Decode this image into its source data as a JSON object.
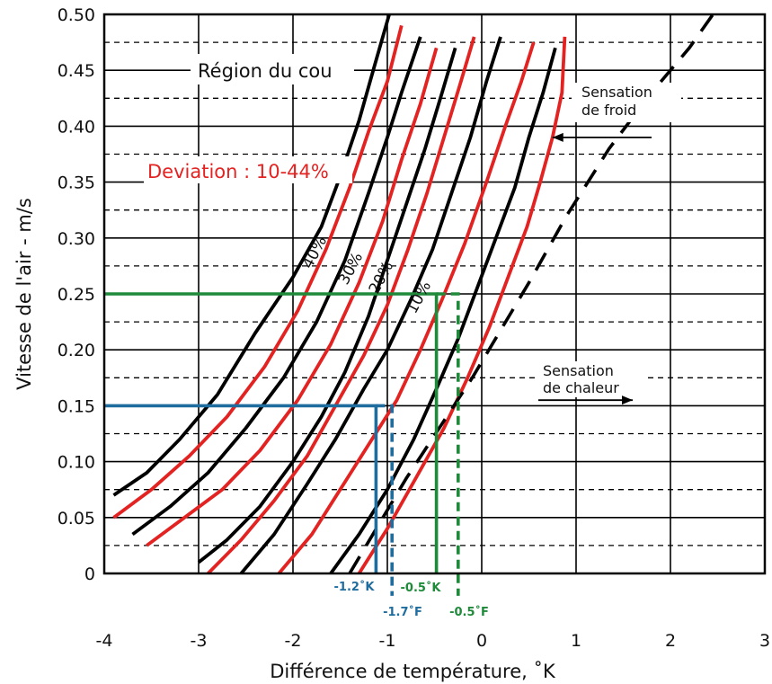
{
  "chart_data": {
    "type": "line",
    "title": "",
    "xlabel": "Différence de température, ˚K",
    "ylabel": "Vitesse de l'air - m/s",
    "xlim": [
      -4,
      3
    ],
    "ylim": [
      0,
      0.5
    ],
    "x_ticks": [
      "-4",
      "-3",
      "-2",
      "-1",
      "0",
      "1",
      "2",
      "3"
    ],
    "y_ticks": [
      "0",
      "0.05",
      "0.10",
      "0.15",
      "0.20",
      "0.25",
      "0.30",
      "0.35",
      "0.40",
      "0.45",
      "0.50"
    ],
    "grid": {
      "vertical": "solid",
      "horizontal": "solid at ticks, dashed between"
    },
    "region_label": "Région du cou",
    "deviation_label": "Deviation : 10-44%",
    "sensation_cold": [
      "Sensation",
      "de froid"
    ],
    "sensation_warm": [
      "Sensation",
      "de chaleur"
    ],
    "curve_labels": [
      "40%",
      "30%",
      "20%",
      "10%"
    ],
    "colors": {
      "black": "#000000",
      "red": "#e32322",
      "green": "#1f8a3a",
      "blue": "#1f6d9e",
      "grid": "#000000"
    },
    "series": [
      {
        "color": "black",
        "points": [
          [
            -3.9,
            0.07
          ],
          [
            -3.55,
            0.09
          ],
          [
            -3.2,
            0.12
          ],
          [
            -2.8,
            0.16
          ],
          [
            -2.4,
            0.215
          ],
          [
            -2.0,
            0.265
          ],
          [
            -1.7,
            0.31
          ],
          [
            -1.5,
            0.355
          ],
          [
            -1.3,
            0.405
          ],
          [
            -1.15,
            0.45
          ],
          [
            -0.98,
            0.5
          ]
        ]
      },
      {
        "color": "red",
        "points": [
          [
            -3.9,
            0.05
          ],
          [
            -3.5,
            0.075
          ],
          [
            -3.1,
            0.105
          ],
          [
            -2.7,
            0.14
          ],
          [
            -2.3,
            0.185
          ],
          [
            -1.95,
            0.235
          ],
          [
            -1.65,
            0.29
          ],
          [
            -1.4,
            0.345
          ],
          [
            -1.2,
            0.395
          ],
          [
            -1.0,
            0.44
          ],
          [
            -0.85,
            0.49
          ]
        ]
      },
      {
        "color": "black",
        "points": [
          [
            -3.7,
            0.035
          ],
          [
            -3.3,
            0.06
          ],
          [
            -2.9,
            0.09
          ],
          [
            -2.5,
            0.13
          ],
          [
            -2.1,
            0.175
          ],
          [
            -1.75,
            0.225
          ],
          [
            -1.45,
            0.28
          ],
          [
            -1.2,
            0.34
          ],
          [
            -1.0,
            0.39
          ],
          [
            -0.85,
            0.43
          ],
          [
            -0.65,
            0.48
          ]
        ]
      },
      {
        "color": "red",
        "points": [
          [
            -3.55,
            0.025
          ],
          [
            -3.15,
            0.05
          ],
          [
            -2.75,
            0.075
          ],
          [
            -2.35,
            0.11
          ],
          [
            -1.95,
            0.155
          ],
          [
            -1.6,
            0.205
          ],
          [
            -1.3,
            0.26
          ],
          [
            -1.05,
            0.315
          ],
          [
            -0.85,
            0.37
          ],
          [
            -0.65,
            0.42
          ],
          [
            -0.48,
            0.47
          ]
        ]
      },
      {
        "color": "black",
        "points": [
          [
            -3.0,
            0.01
          ],
          [
            -2.7,
            0.03
          ],
          [
            -2.35,
            0.06
          ],
          [
            -2.0,
            0.1
          ],
          [
            -1.7,
            0.14
          ],
          [
            -1.45,
            0.18
          ],
          [
            -1.2,
            0.23
          ],
          [
            -1.0,
            0.28
          ],
          [
            -0.8,
            0.33
          ],
          [
            -0.6,
            0.38
          ],
          [
            -0.42,
            0.43
          ],
          [
            -0.28,
            0.47
          ]
        ]
      },
      {
        "color": "red",
        "points": [
          [
            -2.9,
            0.0
          ],
          [
            -2.55,
            0.03
          ],
          [
            -2.2,
            0.065
          ],
          [
            -1.85,
            0.105
          ],
          [
            -1.55,
            0.15
          ],
          [
            -1.25,
            0.195
          ],
          [
            -1.0,
            0.24
          ],
          [
            -0.78,
            0.29
          ],
          [
            -0.58,
            0.34
          ],
          [
            -0.4,
            0.39
          ],
          [
            -0.22,
            0.44
          ],
          [
            -0.08,
            0.48
          ]
        ]
      },
      {
        "color": "black",
        "points": [
          [
            -2.55,
            0.0
          ],
          [
            -2.2,
            0.035
          ],
          [
            -1.85,
            0.08
          ],
          [
            -1.55,
            0.12
          ],
          [
            -1.25,
            0.165
          ],
          [
            -1.0,
            0.2
          ],
          [
            -0.75,
            0.245
          ],
          [
            -0.52,
            0.29
          ],
          [
            -0.32,
            0.34
          ],
          [
            -0.12,
            0.39
          ],
          [
            0.05,
            0.44
          ],
          [
            0.2,
            0.48
          ]
        ]
      },
      {
        "color": "red",
        "points": [
          [
            -2.15,
            0.0
          ],
          [
            -1.8,
            0.035
          ],
          [
            -1.5,
            0.075
          ],
          [
            -1.2,
            0.115
          ],
          [
            -0.9,
            0.155
          ],
          [
            -0.65,
            0.2
          ],
          [
            -0.42,
            0.245
          ],
          [
            -0.18,
            0.295
          ],
          [
            0.05,
            0.35
          ],
          [
            0.25,
            0.4
          ],
          [
            0.42,
            0.44
          ],
          [
            0.55,
            0.475
          ]
        ]
      },
      {
        "color": "black",
        "points": [
          [
            -1.6,
            0.0
          ],
          [
            -1.3,
            0.035
          ],
          [
            -1.0,
            0.075
          ],
          [
            -0.72,
            0.12
          ],
          [
            -0.48,
            0.165
          ],
          [
            -0.25,
            0.21
          ],
          [
            -0.05,
            0.255
          ],
          [
            0.15,
            0.3
          ],
          [
            0.35,
            0.345
          ],
          [
            0.5,
            0.39
          ],
          [
            0.65,
            0.43
          ],
          [
            0.78,
            0.47
          ]
        ]
      },
      {
        "color": "red",
        "points": [
          [
            -1.3,
            0.0
          ],
          [
            -1.0,
            0.04
          ],
          [
            -0.7,
            0.085
          ],
          [
            -0.4,
            0.13
          ],
          [
            -0.15,
            0.175
          ],
          [
            0.08,
            0.22
          ],
          [
            0.28,
            0.265
          ],
          [
            0.48,
            0.31
          ],
          [
            0.62,
            0.35
          ],
          [
            0.75,
            0.39
          ],
          [
            0.85,
            0.43
          ],
          [
            0.88,
            0.48
          ]
        ]
      },
      {
        "color": "black",
        "dashed": true,
        "points": [
          [
            -1.4,
            0.0
          ],
          [
            -0.8,
            0.085
          ],
          [
            -0.1,
            0.175
          ],
          [
            0.5,
            0.26
          ],
          [
            0.9,
            0.32
          ],
          [
            1.35,
            0.38
          ],
          [
            1.8,
            0.43
          ],
          [
            2.2,
            0.47
          ],
          [
            2.45,
            0.5
          ]
        ]
      }
    ],
    "green_lines": [
      {
        "style": "solid",
        "points": [
          [
            -4,
            0.25
          ],
          [
            -0.48,
            0.25
          ],
          [
            -0.48,
            0
          ]
        ]
      },
      {
        "style": "dashed",
        "points": [
          [
            -0.48,
            0.25
          ],
          [
            -0.25,
            0.25
          ],
          [
            -0.25,
            -0.02
          ]
        ]
      }
    ],
    "blue_lines": [
      {
        "style": "solid",
        "points": [
          [
            -4,
            0.15
          ],
          [
            -1.12,
            0.15
          ],
          [
            -1.12,
            0
          ]
        ]
      },
      {
        "style": "dashed",
        "points": [
          [
            -1.12,
            0.15
          ],
          [
            -0.95,
            0.15
          ],
          [
            -0.95,
            -0.02
          ]
        ]
      }
    ],
    "arrows": [
      {
        "from": [
          1.8,
          0.39
        ],
        "to": [
          0.75,
          0.39
        ]
      },
      {
        "from": [
          0.6,
          0.155
        ],
        "to": [
          1.6,
          0.155
        ]
      }
    ],
    "annotations": [
      {
        "text": "-1.2˚K",
        "color": "blue",
        "x": -1.12
      },
      {
        "text": "-1.7˚F",
        "color": "blue",
        "x": -0.95
      },
      {
        "text": "-0.5˚K",
        "color": "green",
        "x": -0.48
      },
      {
        "text": "-0.5˚F",
        "color": "green",
        "x": -0.25
      }
    ]
  }
}
